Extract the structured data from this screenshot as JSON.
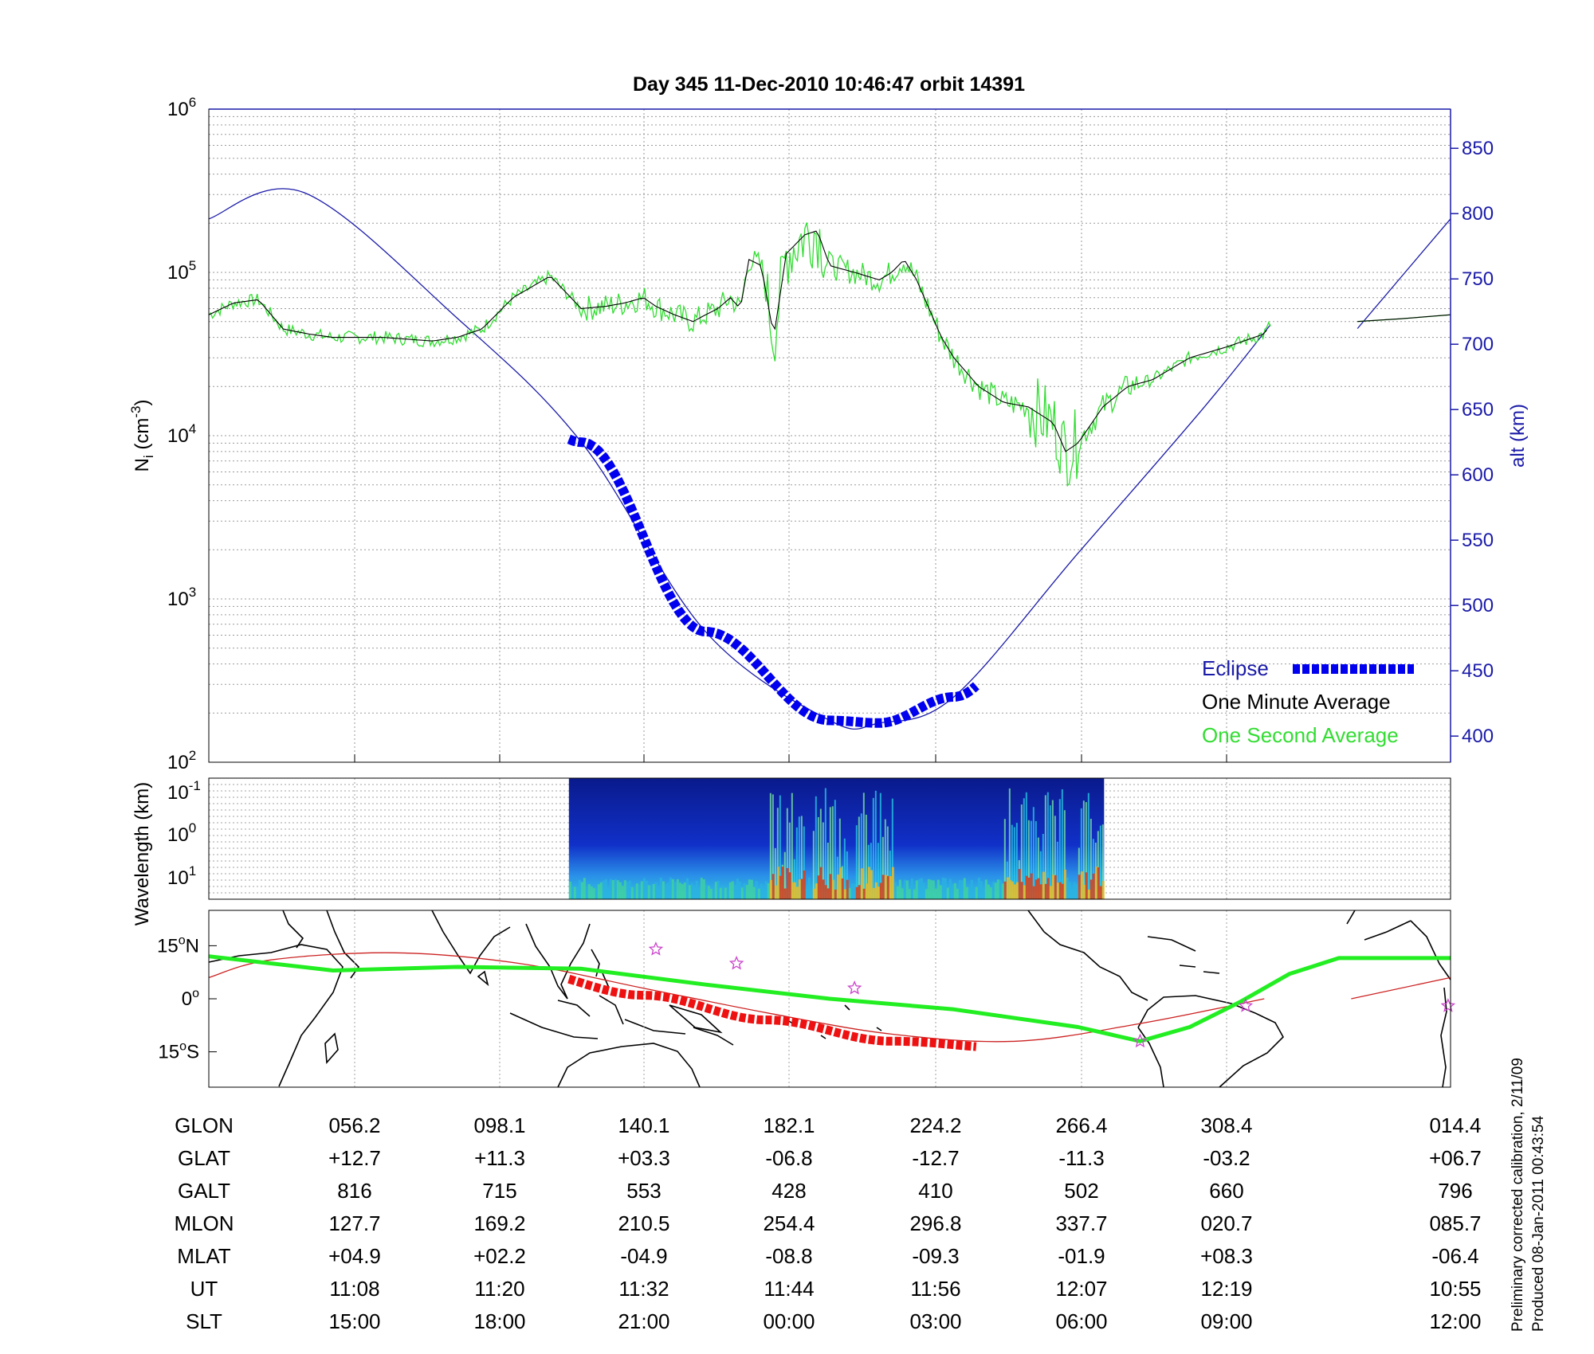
{
  "title": "Day 345  11-Dec-2010 10:46:47   orbit 14391",
  "colors": {
    "altitude": "#1a1aa8",
    "eclipse": "#0000ee",
    "one_minute": "#000000",
    "one_second": "#33dd33",
    "ground_track": "#22ee22",
    "eclipse_track": "#ee1111",
    "magnetic_equator": "#cc2222",
    "dip_star": "#cc44cc",
    "coastline": "#000000"
  },
  "chart_data": [
    {
      "type": "line",
      "panel": "density",
      "ylabel": "N_i (cm^-3)",
      "ylabel_main": "N",
      "ylabel_sub": "i",
      "ylabel_rest": " (cm",
      "ylabel_sup": "-3",
      "ylabel_close": ")",
      "y_scale": "log",
      "ylim": [
        100,
        1000000
      ],
      "y_ticks": [
        {
          "base": "10",
          "exp": "2",
          "value": 100
        },
        {
          "base": "10",
          "exp": "3",
          "value": 1000
        },
        {
          "base": "10",
          "exp": "4",
          "value": 10000
        },
        {
          "base": "10",
          "exp": "5",
          "value": 100000
        },
        {
          "base": "10",
          "exp": "6",
          "value": 1000000
        }
      ],
      "y2label": "alt (km)",
      "y2lim": [
        380,
        880
      ],
      "y2_ticks": [
        "400",
        "450",
        "500",
        "550",
        "600",
        "650",
        "700",
        "750",
        "800",
        "850"
      ],
      "x_ticks_ut": [
        "11:08",
        "11:20",
        "11:32",
        "11:44",
        "11:56",
        "12:07",
        "12:19",
        "10:55"
      ],
      "grid": true,
      "legend_position": "bottom-right",
      "series": [
        {
          "name": "Eclipse",
          "role": "eclipse",
          "x_frac_range": [
            0.29,
            0.621
          ]
        },
        {
          "name": "One Minute Average",
          "role": "minute",
          "x": [
            0.0,
            0.02,
            0.04,
            0.06,
            0.08,
            0.1,
            0.14,
            0.18,
            0.2,
            0.22,
            0.245,
            0.275,
            0.3,
            0.32,
            0.335,
            0.35,
            0.36,
            0.375,
            0.39,
            0.4,
            0.41,
            0.42,
            0.428,
            0.435,
            0.445,
            0.455,
            0.465,
            0.48,
            0.49,
            0.5,
            0.52,
            0.54,
            0.55,
            0.56,
            0.57,
            0.59,
            0.6,
            0.62,
            0.64,
            0.66,
            0.68,
            0.69,
            0.7,
            0.72,
            0.74,
            0.76,
            0.79,
            0.82,
            0.85,
            0.855
          ],
          "y": [
            55000,
            65000,
            68000,
            45000,
            42000,
            40000,
            40000,
            38000,
            40000,
            45000,
            70000,
            95000,
            60000,
            62000,
            65000,
            70000,
            62000,
            55000,
            50000,
            55000,
            60000,
            70000,
            60000,
            120000,
            110000,
            40000,
            130000,
            170000,
            180000,
            110000,
            100000,
            90000,
            100000,
            120000,
            90000,
            40000,
            30000,
            20000,
            16000,
            15000,
            12000,
            8000,
            9000,
            15000,
            20000,
            22000,
            30000,
            35000,
            42000,
            48000
          ]
        },
        {
          "name": "One Second Average",
          "role": "second",
          "x": [
            0.0,
            0.02,
            0.04,
            0.06,
            0.08,
            0.1,
            0.14,
            0.18,
            0.2,
            0.22,
            0.245,
            0.275,
            0.3,
            0.32,
            0.335,
            0.35,
            0.36,
            0.375,
            0.39,
            0.4,
            0.41,
            0.42,
            0.428,
            0.435,
            0.445,
            0.455,
            0.465,
            0.48,
            0.49,
            0.5,
            0.52,
            0.54,
            0.55,
            0.56,
            0.57,
            0.59,
            0.6,
            0.62,
            0.64,
            0.66,
            0.68,
            0.69,
            0.7,
            0.72,
            0.74,
            0.76,
            0.79,
            0.82,
            0.85,
            0.855
          ],
          "y": [
            55000,
            65000,
            68000,
            45000,
            42000,
            40000,
            40000,
            38000,
            40000,
            45000,
            70000,
            95000,
            60000,
            62000,
            65000,
            70000,
            62000,
            55000,
            50000,
            55000,
            60000,
            70000,
            60000,
            120000,
            110000,
            40000,
            130000,
            170000,
            180000,
            110000,
            100000,
            90000,
            100000,
            120000,
            90000,
            40000,
            30000,
            20000,
            16000,
            15000,
            12000,
            8000,
            9000,
            15000,
            20000,
            22000,
            30000,
            35000,
            42000,
            48000
          ]
        }
      ],
      "tail_segment": {
        "x": [
          0.925,
          0.96,
          1.0
        ],
        "y": [
          50000,
          52000,
          55000
        ]
      },
      "altitude": {
        "x": [
          0.0,
          0.077,
          0.2,
          0.3,
          0.4,
          0.5,
          0.54,
          0.6,
          0.7,
          0.8,
          0.855
        ],
        "y": [
          796,
          816,
          720,
          625,
          480,
          412,
          410,
          430,
          540,
          650,
          715
        ],
        "tail_x": [
          0.925,
          1.0
        ],
        "tail_y": [
          712,
          796
        ]
      }
    },
    {
      "type": "heatmap",
      "panel": "spectrogram",
      "ylabel": "Wavelength (km)",
      "y_scale": "log",
      "y_ticks": [
        {
          "base": "10",
          "exp": "-1"
        },
        {
          "base": "10",
          "exp": "0"
        },
        {
          "base": "10",
          "exp": "1"
        }
      ],
      "x_frac_range": [
        0.29,
        0.721
      ],
      "active_bands": [
        [
          0.45,
          0.48
        ],
        [
          0.485,
          0.515
        ],
        [
          0.52,
          0.55
        ],
        [
          0.64,
          0.69
        ],
        [
          0.7,
          0.72
        ]
      ]
    },
    {
      "type": "scatter",
      "panel": "map",
      "y_ticks": [
        {
          "deg": "15",
          "sym": "o",
          "hem": "N",
          "value": 15
        },
        {
          "deg": "0",
          "sym": "o",
          "hem": "",
          "value": 0
        },
        {
          "deg": "15",
          "sym": "o",
          "hem": "S",
          "value": -15
        }
      ],
      "ylim": [
        -25,
        25
      ],
      "ground_track": {
        "x": [
          0.0,
          0.1,
          0.2,
          0.3,
          0.4,
          0.5,
          0.6,
          0.7,
          0.75,
          0.79,
          0.83,
          0.87,
          0.91,
          1.0
        ],
        "lat": [
          12.0,
          8.0,
          9.0,
          8.5,
          4.0,
          0.0,
          -3.0,
          -8.0,
          -12.0,
          -8.0,
          -1.0,
          7.0,
          11.5,
          11.5
        ]
      },
      "eclipse_track_x_range": [
        0.29,
        0.621
      ],
      "magnetic_equator": {
        "x": [
          0.0,
          0.05,
          0.15,
          0.25,
          0.35,
          0.45,
          0.55,
          0.65,
          0.75,
          0.85
        ],
        "lat": [
          6.0,
          11.0,
          13.0,
          10.0,
          3.0,
          -4.0,
          -10.0,
          -12.0,
          -7.0,
          0.0
        ],
        "tail_x": [
          0.92,
          1.0
        ],
        "tail_lat": [
          0.0,
          6.0
        ]
      },
      "dip_points": [
        {
          "x": 0.36,
          "lat": 14.0
        },
        {
          "x": 0.425,
          "lat": 10.0
        },
        {
          "x": 0.52,
          "lat": 3.0
        },
        {
          "x": 0.75,
          "lat": -12.0
        },
        {
          "x": 0.835,
          "lat": -2.0
        },
        {
          "x": 0.998,
          "lat": -2.0
        }
      ]
    },
    {
      "type": "table",
      "panel": "ephemeris",
      "rows": [
        {
          "label": "GLON",
          "values": [
            "056.2",
            "098.1",
            "140.1",
            "182.1",
            "224.2",
            "266.4",
            "308.4",
            "014.4"
          ]
        },
        {
          "label": "GLAT",
          "values": [
            "+12.7",
            "+11.3",
            "+03.3",
            "-06.8",
            "-12.7",
            "-11.3",
            "-03.2",
            "+06.7"
          ]
        },
        {
          "label": "GALT",
          "values": [
            "816",
            "715",
            "553",
            "428",
            "410",
            "502",
            "660",
            "796"
          ]
        },
        {
          "label": "MLON",
          "values": [
            "127.7",
            "169.2",
            "210.5",
            "254.4",
            "296.8",
            "337.7",
            "020.7",
            "085.7"
          ]
        },
        {
          "label": "MLAT",
          "values": [
            "+04.9",
            "+02.2",
            "-04.9",
            "-08.8",
            "-09.3",
            "-01.9",
            "+08.3",
            "-06.4"
          ]
        },
        {
          "label": "UT",
          "values": [
            "11:08",
            "11:20",
            "11:32",
            "11:44",
            "11:56",
            "12:07",
            "12:19",
            "10:55"
          ]
        },
        {
          "label": "SLT",
          "values": [
            "15:00",
            "18:00",
            "21:00",
            "00:00",
            "03:00",
            "06:00",
            "09:00",
            "12:00"
          ]
        }
      ]
    }
  ],
  "legend": {
    "eclipse": "Eclipse",
    "minute": "One Minute Average",
    "second": "One Second Average"
  },
  "footnote": {
    "line1": "Preliminary corrected calibration, 2/11/09",
    "line2": "Produced 08-Jan-2011 00:43:54"
  }
}
